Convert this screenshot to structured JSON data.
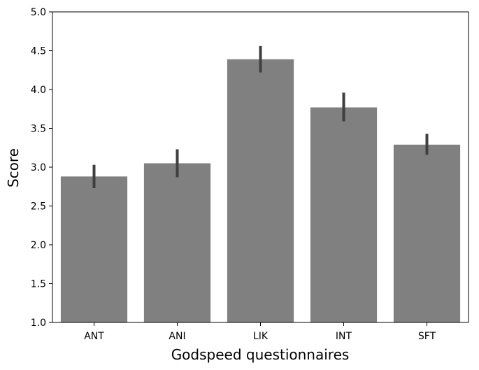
{
  "chart_data": {
    "type": "bar",
    "title": "",
    "xlabel": "Godspeed questionnaires",
    "ylabel": "Score",
    "categories": [
      "ANT",
      "ANI",
      "LIK",
      "INT",
      "SFT"
    ],
    "values": [
      2.88,
      3.05,
      4.39,
      3.77,
      3.29
    ],
    "error_low": [
      2.73,
      2.87,
      4.22,
      3.59,
      3.16
    ],
    "error_high": [
      3.03,
      3.23,
      4.56,
      3.96,
      3.43
    ],
    "ylim": [
      1.0,
      5.0
    ],
    "yticks": [
      "1.0",
      "1.5",
      "2.0",
      "2.5",
      "3.0",
      "3.5",
      "4.0",
      "4.5",
      "5.0"
    ],
    "grid": false,
    "legend": "none",
    "bar_color": "#808080",
    "error_color": "#3f3f3f",
    "axis_color": "#000000"
  }
}
